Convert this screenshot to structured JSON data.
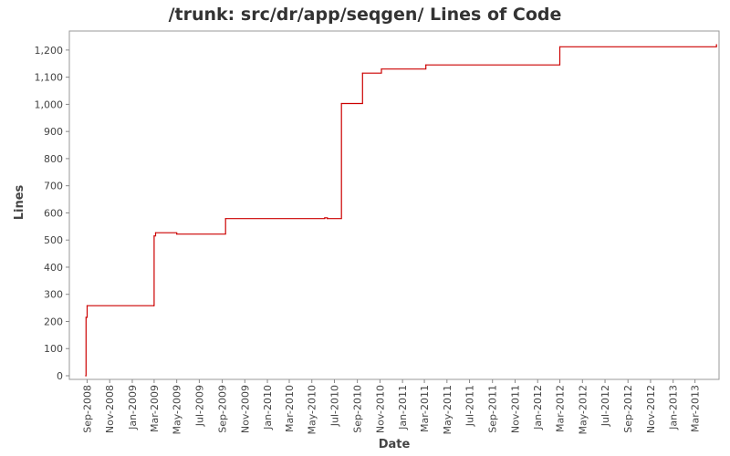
{
  "chart_data": {
    "type": "line",
    "title": "/trunk: src/dr/app/seqgen/ Lines of Code",
    "xlabel": "Date",
    "ylabel": "Lines",
    "ylim": [
      0,
      1250
    ],
    "xlim": [
      "2008-07-15",
      "2013-05-05"
    ],
    "x_ticks": [
      "Sep-2008",
      "Nov-2008",
      "Jan-2009",
      "Mar-2009",
      "May-2009",
      "Jul-2009",
      "Sep-2009",
      "Nov-2009",
      "Jan-2010",
      "Mar-2010",
      "May-2010",
      "Jul-2010",
      "Sep-2010",
      "Nov-2010",
      "Jan-2011",
      "Mar-2011",
      "May-2011",
      "Jul-2011",
      "Sep-2011",
      "Nov-2011",
      "Jan-2012",
      "Mar-2012",
      "May-2012",
      "Jul-2012",
      "Sep-2012",
      "Nov-2012",
      "Jan-2013",
      "Mar-2013"
    ],
    "y_ticks": [
      "0",
      "100",
      "200",
      "300",
      "400",
      "500",
      "600",
      "700",
      "800",
      "900",
      "1,000",
      "1,100",
      "1,200"
    ],
    "grid": false,
    "step": true,
    "series": [
      {
        "color": "#cc0000",
        "points": [
          {
            "x": "2008-08-28",
            "y": 0
          },
          {
            "x": "2008-08-29",
            "y": 215
          },
          {
            "x": "2008-09-01",
            "y": 258
          },
          {
            "x": "2009-02-28",
            "y": 258
          },
          {
            "x": "2009-03-01",
            "y": 515
          },
          {
            "x": "2009-03-05",
            "y": 527
          },
          {
            "x": "2009-05-01",
            "y": 522
          },
          {
            "x": "2009-09-10",
            "y": 579
          },
          {
            "x": "2010-06-05",
            "y": 582
          },
          {
            "x": "2010-06-12",
            "y": 579
          },
          {
            "x": "2010-07-20",
            "y": 1003
          },
          {
            "x": "2010-09-15",
            "y": 1115
          },
          {
            "x": "2010-11-05",
            "y": 1130
          },
          {
            "x": "2011-03-05",
            "y": 1145
          },
          {
            "x": "2012-03-01",
            "y": 1212
          },
          {
            "x": "2013-04-28",
            "y": 1220
          }
        ]
      }
    ]
  }
}
